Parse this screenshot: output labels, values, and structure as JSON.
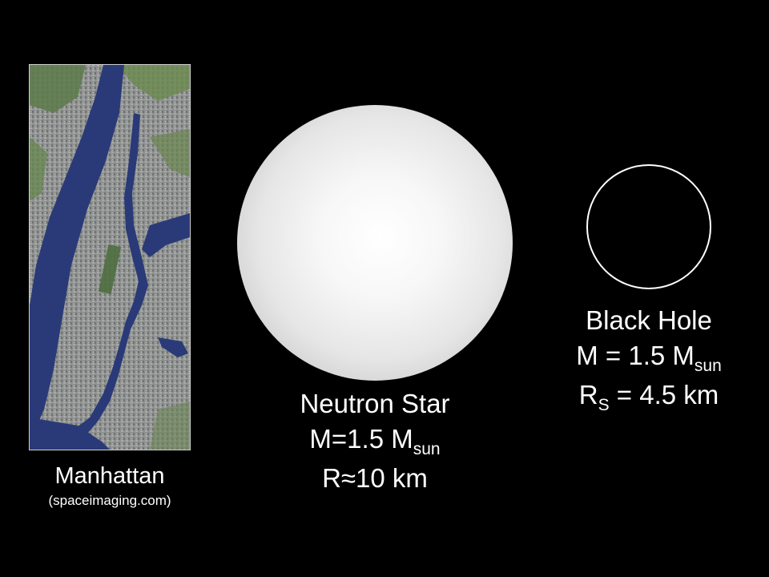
{
  "manhattan": {
    "title": "Manhattan",
    "credit": "(spaceimaging.com)"
  },
  "neutron_star": {
    "title": "Neutron Star",
    "mass_prefix": "M=1.5 M",
    "mass_sub": "sun",
    "radius": "R≈10 km"
  },
  "black_hole": {
    "title": "Black Hole",
    "mass_prefix": "M = 1.5 M",
    "mass_sub": "sun",
    "radius_prefix": "R",
    "radius_sub": "S",
    "radius_suffix": " = 4.5 km"
  },
  "colors": {
    "background": "#000000",
    "text": "#ffffff",
    "water": "#2a3a78",
    "star_center": "#ffffff",
    "star_edge": "#a9a9a9"
  }
}
